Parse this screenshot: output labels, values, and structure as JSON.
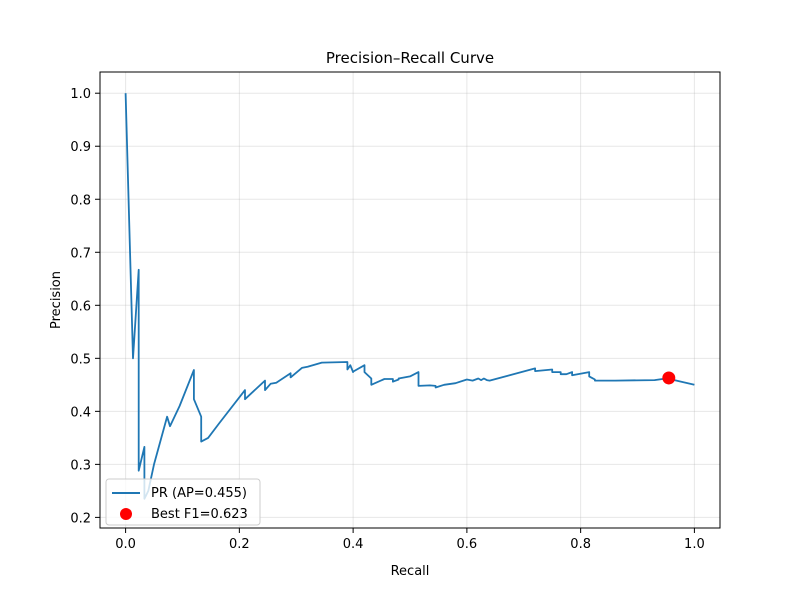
{
  "chart_data": {
    "type": "line",
    "title": "Precision–Recall Curve",
    "xlabel": "Recall",
    "ylabel": "Precision",
    "xlim": [
      -0.045,
      1.045
    ],
    "ylim": [
      0.18,
      1.04
    ],
    "xticks": [
      "0.0",
      "0.2",
      "0.4",
      "0.6",
      "0.8",
      "1.0"
    ],
    "yticks": [
      "0.2",
      "0.3",
      "0.4",
      "0.5",
      "0.6",
      "0.7",
      "0.8",
      "0.9",
      "1.0"
    ],
    "grid": true,
    "legend_position": "lower-left",
    "series": [
      {
        "name": "PR (AP=0.455)",
        "color": "#1f77b4",
        "x": [
          0.0,
          0.013,
          0.023,
          0.023,
          0.033,
          0.033,
          0.04,
          0.05,
          0.073,
          0.078,
          0.095,
          0.12,
          0.12,
          0.133,
          0.133,
          0.145,
          0.165,
          0.21,
          0.21,
          0.245,
          0.245,
          0.255,
          0.265,
          0.29,
          0.29,
          0.31,
          0.32,
          0.345,
          0.39,
          0.39,
          0.395,
          0.4,
          0.4,
          0.42,
          0.42,
          0.432,
          0.432,
          0.455,
          0.47,
          0.47,
          0.48,
          0.48,
          0.5,
          0.515,
          0.515,
          0.535,
          0.545,
          0.545,
          0.56,
          0.58,
          0.6,
          0.61,
          0.62,
          0.625,
          0.63,
          0.635,
          0.64,
          0.72,
          0.72,
          0.75,
          0.75,
          0.765,
          0.765,
          0.775,
          0.785,
          0.785,
          0.815,
          0.815,
          0.82,
          0.825,
          0.825,
          0.86,
          0.93,
          0.95,
          0.96,
          1.0
        ],
        "y": [
          1.0,
          0.5,
          0.667,
          0.288,
          0.333,
          0.235,
          0.25,
          0.3,
          0.39,
          0.372,
          0.41,
          0.478,
          0.423,
          0.39,
          0.343,
          0.35,
          0.378,
          0.44,
          0.423,
          0.458,
          0.44,
          0.452,
          0.454,
          0.472,
          0.464,
          0.482,
          0.484,
          0.492,
          0.493,
          0.479,
          0.487,
          0.474,
          0.475,
          0.487,
          0.474,
          0.462,
          0.45,
          0.461,
          0.461,
          0.456,
          0.46,
          0.462,
          0.466,
          0.474,
          0.448,
          0.449,
          0.448,
          0.445,
          0.45,
          0.453,
          0.46,
          0.458,
          0.462,
          0.459,
          0.462,
          0.459,
          0.458,
          0.481,
          0.476,
          0.479,
          0.474,
          0.474,
          0.47,
          0.47,
          0.474,
          0.468,
          0.474,
          0.466,
          0.463,
          0.46,
          0.458,
          0.458,
          0.459,
          0.462,
          0.46,
          0.45
        ]
      }
    ],
    "points": [
      {
        "name": "Best F1=0.623",
        "color": "#ff0000",
        "x": 0.955,
        "y": 0.463
      }
    ]
  }
}
